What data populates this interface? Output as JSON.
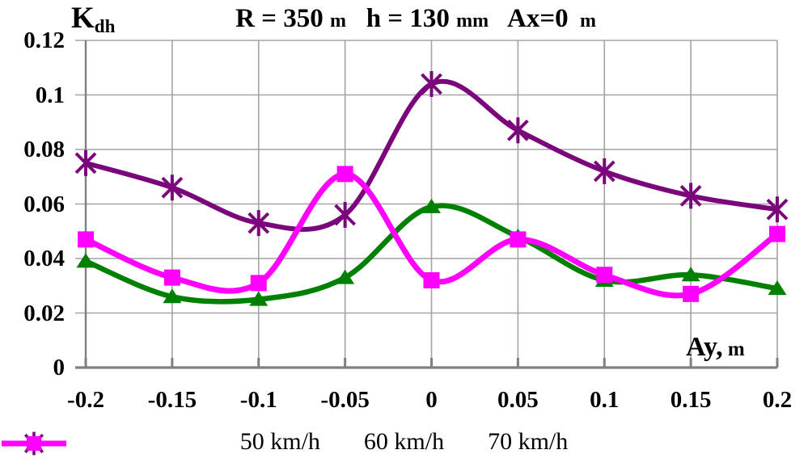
{
  "chart_title": {
    "full_text": "R = 350 m  h = 130 mm  Ax=0 m",
    "parts": [
      {
        "text": "R = 350 ",
        "size": "big"
      },
      {
        "text": "m",
        "size": "small"
      },
      {
        "text": "   h = 130 ",
        "size": "big"
      },
      {
        "text": "mm",
        "size": "small"
      },
      {
        "text": "   Ax=0 ",
        "size": "big"
      },
      {
        "text": " m",
        "size": "small"
      }
    ]
  },
  "axes": {
    "y_title_main": "K",
    "y_title_sub": "dh",
    "x_title_main": "Ay,",
    "x_title_unit": " m"
  },
  "chart_data": {
    "type": "line",
    "title": "R = 350 m  h = 130 mm  Ax=0 m",
    "xlabel": "Ay, m",
    "ylabel": "Kdh",
    "x": [
      -0.2,
      -0.15,
      -0.1,
      -0.05,
      0,
      0.05,
      0.1,
      0.15,
      0.2
    ],
    "x_tick_labels": [
      "-0.2",
      "-0.15",
      "-0.1",
      "-0.05",
      "0",
      "0.05",
      "0.1",
      "0.15",
      "0.2"
    ],
    "y_ticks": [
      0,
      0.02,
      0.04,
      0.06,
      0.08,
      0.1,
      0.12
    ],
    "y_tick_labels": [
      "0",
      "0.02",
      "0.04",
      "0.06",
      "0.08",
      "0.1",
      "0.12"
    ],
    "xlim": [
      -0.2,
      0.2
    ],
    "ylim": [
      0,
      0.12
    ],
    "grid": true,
    "smooth_lines": true,
    "legend_position": "bottom",
    "series": [
      {
        "name": "50 km/h",
        "color": "#7B067B",
        "marker": "asterisk",
        "values": [
          0.075,
          0.066,
          0.053,
          0.056,
          0.104,
          0.087,
          0.072,
          0.063,
          0.058
        ]
      },
      {
        "name": "60 km/h",
        "color": "#008000",
        "marker": "triangle",
        "values": [
          0.039,
          0.026,
          0.025,
          0.033,
          0.059,
          0.048,
          0.032,
          0.034,
          0.029
        ]
      },
      {
        "name": "70 km/h",
        "color": "#FF00FF",
        "marker": "square",
        "values": [
          0.047,
          0.033,
          0.031,
          0.071,
          0.032,
          0.047,
          0.034,
          0.027,
          0.049
        ]
      }
    ],
    "colors": {
      "gridline": "#A3A3A3",
      "axis": "#7F7F7F",
      "text": "#000000",
      "background": "#FFFFFF"
    }
  }
}
